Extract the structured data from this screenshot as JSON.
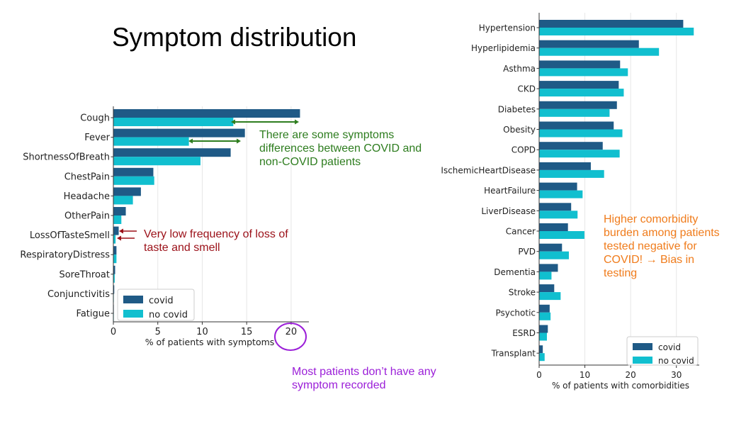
{
  "slide": {
    "title": "Symptom distribution",
    "notes": {
      "symptom_diff": "There are some symptoms differences between COVID and non-COVID patients",
      "loss_of_taste": "Very low frequency of loss of taste and smell",
      "no_symptom": "Most patients don’t have any symptom recorded",
      "comorbidity": "Higher comorbidity burden among patients tested negative for COVID! → Bias in testing"
    },
    "colors": {
      "covid": "#1f5a86",
      "no_covid": "#11bfcf",
      "green_note": "#2e7d1f",
      "red_note": "#9b1018",
      "purple_note": "#9b1fd8",
      "orange_note": "#f07c1c"
    }
  },
  "chart_data": [
    {
      "type": "bar",
      "orientation": "horizontal",
      "title": "",
      "xlabel": "% of patients with symptoms",
      "ylabel": "",
      "xlim": [
        0,
        22
      ],
      "xticks": [
        0,
        5,
        10,
        15,
        20
      ],
      "grid": "vertical",
      "legend": "bottom-left",
      "categories": [
        "Cough",
        "Fever",
        "ShortnessOfBreath",
        "ChestPain",
        "Headache",
        "OtherPain",
        "LossOfTasteSmell",
        "RespiratoryDistress",
        "SoreThroat",
        "Conjunctivitis",
        "Fatigue"
      ],
      "series": [
        {
          "name": "covid",
          "values": [
            21.0,
            14.8,
            13.2,
            4.5,
            3.1,
            1.4,
            0.6,
            0.35,
            0.2,
            0.1,
            0.05
          ]
        },
        {
          "name": "no covid",
          "values": [
            13.5,
            8.5,
            9.8,
            4.6,
            2.2,
            0.9,
            0.25,
            0.35,
            0.15,
            0.05,
            0.05
          ]
        }
      ]
    },
    {
      "type": "bar",
      "orientation": "horizontal",
      "title": "",
      "xlabel": "% of patients with comorbidities",
      "ylabel": "",
      "xlim": [
        0,
        35
      ],
      "xticks": [
        0,
        10,
        20,
        30
      ],
      "grid": "vertical",
      "legend": "bottom-right",
      "categories": [
        "Hypertension",
        "Hyperlipidemia",
        "Asthma",
        "CKD",
        "Diabetes",
        "Obesity",
        "COPD",
        "IschemicHeartDisease",
        "HeartFailure",
        "LiverDisease",
        "Cancer",
        "PVD",
        "Dementia",
        "Stroke",
        "Psychotic",
        "ESRD",
        "Transplant"
      ],
      "series": [
        {
          "name": "covid",
          "values": [
            31.5,
            21.8,
            17.7,
            17.4,
            17.0,
            16.3,
            13.9,
            11.3,
            8.3,
            7.0,
            6.3,
            5.0,
            4.1,
            3.3,
            2.3,
            1.9,
            0.8
          ]
        },
        {
          "name": "no covid",
          "values": [
            33.8,
            26.2,
            19.4,
            18.5,
            15.4,
            18.2,
            17.6,
            14.2,
            9.5,
            8.4,
            9.9,
            6.5,
            2.7,
            4.7,
            2.5,
            1.7,
            1.2
          ]
        }
      ]
    }
  ]
}
